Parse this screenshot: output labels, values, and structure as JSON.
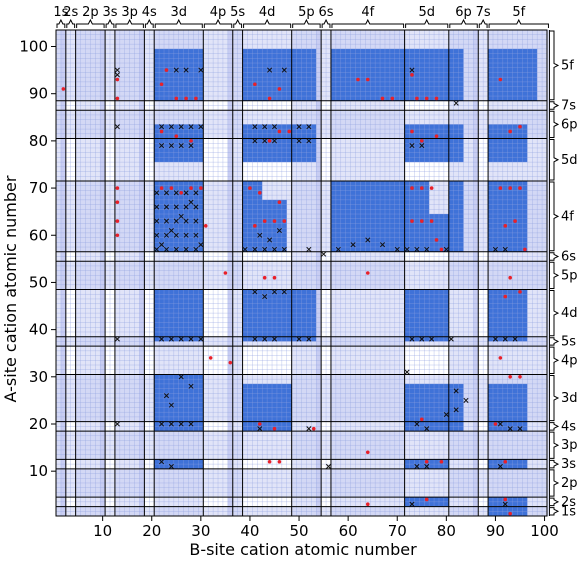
{
  "colors": {
    "filled": "#3f72d8",
    "background": "#c8cdf2",
    "empty": "#ffffff",
    "gridline": "#8fa0e0",
    "divider": "#000000",
    "marker_red": "#e8202a",
    "marker_black": "#111111"
  },
  "chart_data": {
    "type": "heatmap",
    "xlabel": "B-site cation atomic number",
    "ylabel": "A-site cation atomic number",
    "xlim": [
      0.5,
      100.5
    ],
    "ylim": [
      0.5,
      103.5
    ],
    "x_ticks": [
      {
        "value": 10,
        "label": "10"
      },
      {
        "value": 20,
        "label": "20"
      },
      {
        "value": 30,
        "label": "30"
      },
      {
        "value": 40,
        "label": "40"
      },
      {
        "value": 50,
        "label": "50"
      },
      {
        "value": 60,
        "label": "60"
      },
      {
        "value": 70,
        "label": "70"
      },
      {
        "value": 80,
        "label": "80"
      },
      {
        "value": 90,
        "label": "90"
      },
      {
        "value": 100,
        "label": "100"
      }
    ],
    "y_ticks": [
      {
        "value": 10,
        "label": "10"
      },
      {
        "value": 20,
        "label": "20"
      },
      {
        "value": 30,
        "label": "30"
      },
      {
        "value": 40,
        "label": "40"
      },
      {
        "value": 50,
        "label": "50"
      },
      {
        "value": 60,
        "label": "60"
      },
      {
        "value": 70,
        "label": "70"
      },
      {
        "value": 80,
        "label": "80"
      },
      {
        "value": 90,
        "label": "90"
      },
      {
        "value": 100,
        "label": "100"
      }
    ],
    "orbital_blocks": [
      {
        "label": "1s",
        "start": 1,
        "end": 2
      },
      {
        "label": "2s",
        "start": 3,
        "end": 4
      },
      {
        "label": "2p",
        "start": 5,
        "end": 10
      },
      {
        "label": "3s",
        "start": 11,
        "end": 12
      },
      {
        "label": "3p",
        "start": 13,
        "end": 18
      },
      {
        "label": "4s",
        "start": 19,
        "end": 20
      },
      {
        "label": "3d",
        "start": 21,
        "end": 30
      },
      {
        "label": "4p",
        "start": 31,
        "end": 36
      },
      {
        "label": "5s",
        "start": 37,
        "end": 38
      },
      {
        "label": "4d",
        "start": 39,
        "end": 48
      },
      {
        "label": "5p",
        "start": 49,
        "end": 54
      },
      {
        "label": "6s",
        "start": 55,
        "end": 56
      },
      {
        "label": "4f",
        "start": 57,
        "end": 71
      },
      {
        "label": "5d",
        "start": 72,
        "end": 80
      },
      {
        "label": "6p",
        "start": 81,
        "end": 86
      },
      {
        "label": "7s",
        "start": 87,
        "end": 88
      },
      {
        "label": "5f",
        "start": 89,
        "end": 103
      }
    ],
    "unavailable_columns": [
      2,
      10,
      18,
      36,
      54,
      86
    ],
    "filled_regions": [
      {
        "x": [
          21,
          30
        ],
        "y": [
          57,
          71
        ]
      },
      {
        "x": [
          57,
          71
        ],
        "y": [
          57,
          71
        ]
      },
      {
        "x": [
          89,
          96
        ],
        "y": [
          57,
          71
        ]
      },
      {
        "x": [
          39,
          42
        ],
        "y": [
          57,
          71
        ]
      },
      {
        "x": [
          43,
          47
        ],
        "y": [
          57,
          67
        ]
      },
      {
        "x": [
          72,
          76
        ],
        "y": [
          57,
          71
        ]
      },
      {
        "x": [
          77,
          80
        ],
        "y": [
          57,
          64
        ]
      },
      {
        "x": [
          81,
          83
        ],
        "y": [
          57,
          71
        ]
      },
      {
        "x": [
          57,
          71
        ],
        "y": [
          89,
          99
        ]
      },
      {
        "x": [
          21,
          30
        ],
        "y": [
          89,
          99
        ]
      },
      {
        "x": [
          89,
          98
        ],
        "y": [
          89,
          99
        ]
      },
      {
        "x": [
          39,
          48
        ],
        "y": [
          89,
          99
        ]
      },
      {
        "x": [
          72,
          80
        ],
        "y": [
          89,
          99
        ]
      },
      {
        "x": [
          49,
          53
        ],
        "y": [
          89,
          99
        ]
      },
      {
        "x": [
          81,
          83
        ],
        "y": [
          89,
          99
        ]
      },
      {
        "x": [
          21,
          30
        ],
        "y": [
          76,
          83
        ]
      },
      {
        "x": [
          39,
          48
        ],
        "y": [
          76,
          83
        ]
      },
      {
        "x": [
          72,
          80
        ],
        "y": [
          76,
          83
        ]
      },
      {
        "x": [
          89,
          96
        ],
        "y": [
          76,
          83
        ]
      },
      {
        "x": [
          49,
          53
        ],
        "y": [
          76,
          83
        ]
      },
      {
        "x": [
          81,
          83
        ],
        "y": [
          76,
          83
        ]
      },
      {
        "x": [
          21,
          30
        ],
        "y": [
          38,
          48
        ]
      },
      {
        "x": [
          39,
          48
        ],
        "y": [
          38,
          48
        ]
      },
      {
        "x": [
          72,
          80
        ],
        "y": [
          38,
          48
        ]
      },
      {
        "x": [
          89,
          96
        ],
        "y": [
          38,
          48
        ]
      },
      {
        "x": [
          49,
          53
        ],
        "y": [
          38,
          48
        ]
      },
      {
        "x": [
          21,
          30
        ],
        "y": [
          19,
          30
        ]
      },
      {
        "x": [
          39,
          48
        ],
        "y": [
          19,
          28
        ]
      },
      {
        "x": [
          72,
          80
        ],
        "y": [
          19,
          28
        ]
      },
      {
        "x": [
          81,
          83
        ],
        "y": [
          19,
          28
        ]
      },
      {
        "x": [
          89,
          96
        ],
        "y": [
          19,
          28
        ]
      },
      {
        "x": [
          21,
          30
        ],
        "y": [
          11,
          12
        ]
      },
      {
        "x": [
          72,
          80
        ],
        "y": [
          11,
          12
        ]
      },
      {
        "x": [
          89,
          96
        ],
        "y": [
          11,
          12
        ]
      },
      {
        "x": [
          72,
          80
        ],
        "y": [
          3,
          4
        ]
      },
      {
        "x": [
          89,
          96
        ],
        "y": [
          3,
          4
        ]
      },
      {
        "x": [
          89,
          96
        ],
        "y": [
          1,
          2
        ]
      }
    ],
    "markers_red": [
      [
        2,
        91
      ],
      [
        13,
        93
      ],
      [
        13,
        89
      ],
      [
        23,
        95
      ],
      [
        25,
        89
      ],
      [
        27,
        89
      ],
      [
        29,
        89
      ],
      [
        22,
        92
      ],
      [
        41,
        92
      ],
      [
        44,
        89
      ],
      [
        46,
        91
      ],
      [
        62,
        93
      ],
      [
        64,
        93
      ],
      [
        67,
        89
      ],
      [
        69,
        89
      ],
      [
        73,
        94
      ],
      [
        74,
        89
      ],
      [
        76,
        89
      ],
      [
        78,
        89
      ],
      [
        91,
        93
      ],
      [
        22,
        82
      ],
      [
        25,
        81
      ],
      [
        28,
        80
      ],
      [
        44,
        80
      ],
      [
        46,
        82
      ],
      [
        48,
        82
      ],
      [
        73,
        82
      ],
      [
        75,
        80
      ],
      [
        78,
        81
      ],
      [
        93,
        82
      ],
      [
        95,
        83
      ],
      [
        13,
        70
      ],
      [
        13,
        67
      ],
      [
        13,
        63
      ],
      [
        13,
        60
      ],
      [
        22,
        70
      ],
      [
        24,
        70
      ],
      [
        26,
        69
      ],
      [
        28,
        70
      ],
      [
        30,
        70
      ],
      [
        31,
        62
      ],
      [
        40,
        70
      ],
      [
        42,
        69
      ],
      [
        46,
        67
      ],
      [
        41,
        62
      ],
      [
        43,
        63
      ],
      [
        45,
        63
      ],
      [
        47,
        63
      ],
      [
        73,
        70
      ],
      [
        75,
        70
      ],
      [
        77,
        70
      ],
      [
        73,
        63
      ],
      [
        75,
        63
      ],
      [
        77,
        63
      ],
      [
        78,
        59
      ],
      [
        79,
        57
      ],
      [
        91,
        70
      ],
      [
        93,
        70
      ],
      [
        95,
        70
      ],
      [
        92,
        62
      ],
      [
        94,
        63
      ],
      [
        96,
        57
      ],
      [
        35,
        52
      ],
      [
        43,
        51
      ],
      [
        45,
        51
      ],
      [
        64,
        52
      ],
      [
        93,
        51
      ],
      [
        95,
        48
      ],
      [
        92,
        47
      ],
      [
        32,
        34
      ],
      [
        36,
        33
      ],
      [
        91,
        34
      ],
      [
        93,
        30
      ],
      [
        95,
        30
      ],
      [
        42,
        20
      ],
      [
        45,
        19
      ],
      [
        53,
        19
      ],
      [
        75,
        21
      ],
      [
        90,
        20
      ],
      [
        44,
        12
      ],
      [
        46,
        12
      ],
      [
        64,
        14
      ],
      [
        76,
        12
      ],
      [
        79,
        12
      ],
      [
        92,
        12
      ],
      [
        64,
        3
      ],
      [
        76,
        4
      ],
      [
        92,
        4
      ],
      [
        93,
        1
      ]
    ],
    "markers_black": [
      [
        13,
        95
      ],
      [
        13,
        94
      ],
      [
        25,
        95
      ],
      [
        27,
        95
      ],
      [
        30,
        95
      ],
      [
        44,
        95
      ],
      [
        47,
        95
      ],
      [
        73,
        95
      ],
      [
        82,
        88
      ],
      [
        13,
        83
      ],
      [
        22,
        83
      ],
      [
        24,
        83
      ],
      [
        26,
        83
      ],
      [
        28,
        83
      ],
      [
        30,
        83
      ],
      [
        41,
        83
      ],
      [
        43,
        83
      ],
      [
        45,
        83
      ],
      [
        50,
        83
      ],
      [
        52,
        83
      ],
      [
        22,
        79
      ],
      [
        24,
        79
      ],
      [
        26,
        79
      ],
      [
        28,
        79
      ],
      [
        41,
        80
      ],
      [
        43,
        80
      ],
      [
        45,
        80
      ],
      [
        50,
        80
      ],
      [
        52,
        80
      ],
      [
        73,
        79
      ],
      [
        75,
        79
      ],
      [
        21,
        57
      ],
      [
        23,
        57
      ],
      [
        25,
        57
      ],
      [
        27,
        57
      ],
      [
        29,
        57
      ],
      [
        21,
        60
      ],
      [
        23,
        60
      ],
      [
        25,
        60
      ],
      [
        27,
        60
      ],
      [
        29,
        60
      ],
      [
        21,
        63
      ],
      [
        23,
        63
      ],
      [
        25,
        63
      ],
      [
        27,
        63
      ],
      [
        29,
        63
      ],
      [
        21,
        66
      ],
      [
        23,
        66
      ],
      [
        25,
        66
      ],
      [
        27,
        66
      ],
      [
        29,
        66
      ],
      [
        21,
        69
      ],
      [
        23,
        69
      ],
      [
        25,
        69
      ],
      [
        27,
        69
      ],
      [
        29,
        69
      ],
      [
        22,
        58
      ],
      [
        24,
        61
      ],
      [
        26,
        64
      ],
      [
        28,
        67
      ],
      [
        30,
        58
      ],
      [
        39,
        57
      ],
      [
        41,
        57
      ],
      [
        43,
        57
      ],
      [
        45,
        57
      ],
      [
        47,
        57
      ],
      [
        42,
        60
      ],
      [
        44,
        59
      ],
      [
        46,
        61
      ],
      [
        52,
        57
      ],
      [
        55,
        56
      ],
      [
        58,
        57
      ],
      [
        61,
        58
      ],
      [
        64,
        59
      ],
      [
        67,
        58
      ],
      [
        70,
        57
      ],
      [
        72,
        57
      ],
      [
        74,
        57
      ],
      [
        76,
        57
      ],
      [
        80,
        57
      ],
      [
        90,
        57
      ],
      [
        92,
        57
      ],
      [
        41,
        48
      ],
      [
        43,
        47
      ],
      [
        45,
        48
      ],
      [
        47,
        48
      ],
      [
        22,
        38
      ],
      [
        24,
        38
      ],
      [
        26,
        38
      ],
      [
        28,
        38
      ],
      [
        30,
        38
      ],
      [
        41,
        38
      ],
      [
        43,
        38
      ],
      [
        45,
        38
      ],
      [
        50,
        38
      ],
      [
        52,
        38
      ],
      [
        73,
        38
      ],
      [
        75,
        38
      ],
      [
        77,
        38
      ],
      [
        81,
        38
      ],
      [
        90,
        38
      ],
      [
        92,
        38
      ],
      [
        94,
        38
      ],
      [
        13,
        38
      ],
      [
        23,
        26
      ],
      [
        24,
        24
      ],
      [
        26,
        30
      ],
      [
        28,
        28
      ],
      [
        22,
        20
      ],
      [
        24,
        20
      ],
      [
        26,
        20
      ],
      [
        28,
        20
      ],
      [
        42,
        19
      ],
      [
        52,
        19
      ],
      [
        13,
        20
      ],
      [
        72,
        31
      ],
      [
        74,
        20
      ],
      [
        76,
        19
      ],
      [
        80,
        22
      ],
      [
        82,
        27
      ],
      [
        84,
        25
      ],
      [
        82,
        23
      ],
      [
        91,
        20
      ],
      [
        93,
        19
      ],
      [
        95,
        19
      ],
      [
        22,
        12
      ],
      [
        24,
        11
      ],
      [
        56,
        11
      ],
      [
        74,
        11
      ],
      [
        76,
        11
      ],
      [
        91,
        11
      ],
      [
        73,
        3
      ],
      [
        92,
        3
      ]
    ],
    "grid": "on"
  }
}
